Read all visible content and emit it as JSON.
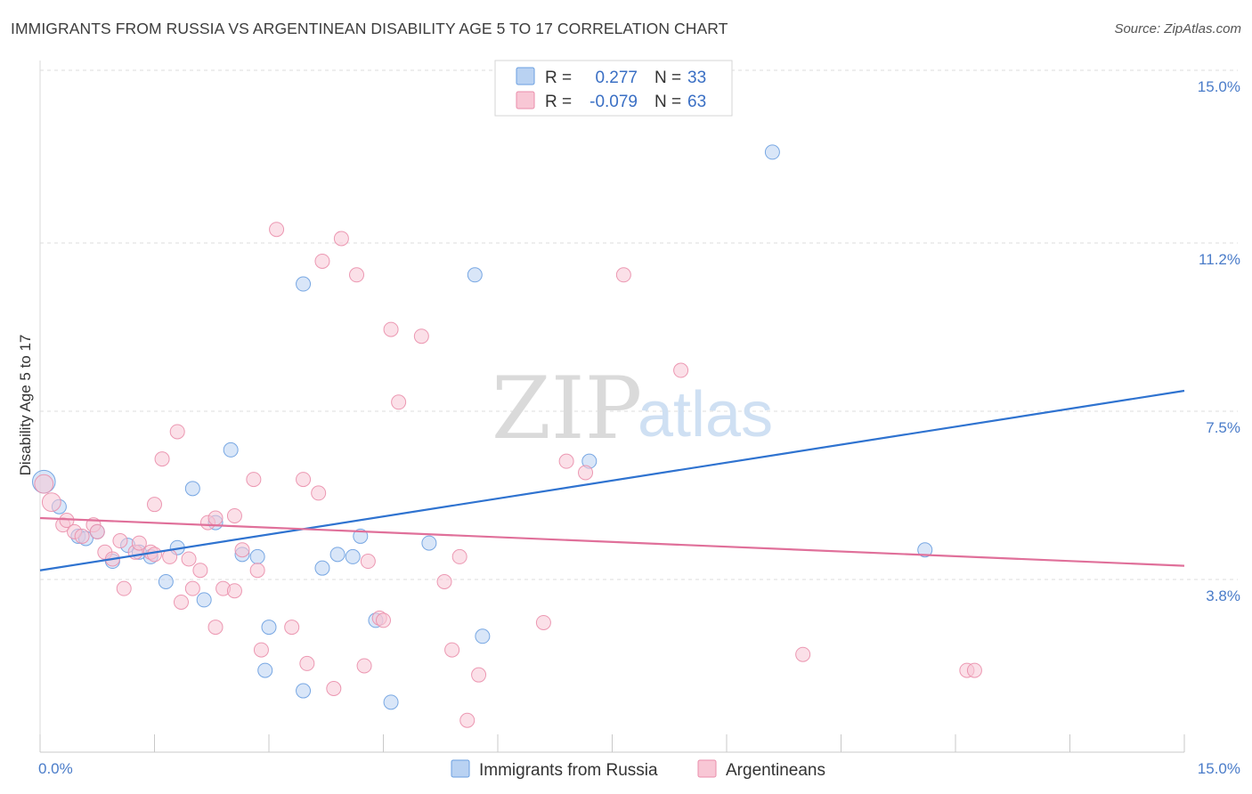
{
  "title": "IMMIGRANTS FROM RUSSIA VS ARGENTINEAN DISABILITY AGE 5 TO 17 CORRELATION CHART",
  "source": "Source: ZipAtlas.com",
  "watermark": {
    "zip": "ZIP",
    "atlas": "atlas"
  },
  "legend": {
    "r_label": "R =",
    "n_label": "N =",
    "rows": [
      {
        "r": "0.277",
        "n": "33",
        "color": "#a9c8ef"
      },
      {
        "r": "-0.079",
        "n": "63",
        "color": "#f7b8cb"
      }
    ]
  },
  "chart_data": {
    "type": "scatter",
    "title": "IMMIGRANTS FROM RUSSIA VS ARGENTINEAN DISABILITY AGE 5 TO 17 CORRELATION CHART",
    "xlabel": "",
    "ylabel": "Disability Age 5 to 17",
    "xlim": [
      0,
      15
    ],
    "ylim": [
      0,
      15
    ],
    "x_tick_labels": [
      "0.0%",
      "15.0%"
    ],
    "y_ticks": [
      3.8,
      7.5,
      11.2,
      15.0
    ],
    "y_tick_labels": [
      "3.8%",
      "7.5%",
      "11.2%",
      "15.0%"
    ],
    "grid": true,
    "legend_position": "top-center",
    "series": [
      {
        "name": "Immigrants from Russia",
        "color": "#6a9fe0",
        "fill": "#b9d2f2",
        "trend": {
          "x": [
            0,
            15
          ],
          "y": [
            4.0,
            7.95
          ]
        },
        "points": [
          [
            0.05,
            5.95,
            1.6
          ],
          [
            0.25,
            5.4,
            1
          ],
          [
            0.5,
            4.75,
            1
          ],
          [
            0.6,
            4.7,
            1
          ],
          [
            0.75,
            4.85,
            1
          ],
          [
            0.95,
            4.2,
            1
          ],
          [
            1.15,
            4.55,
            1
          ],
          [
            1.45,
            4.3,
            1
          ],
          [
            1.3,
            4.4,
            1
          ],
          [
            1.65,
            3.75,
            1
          ],
          [
            1.8,
            4.5,
            1
          ],
          [
            2.0,
            5.8,
            1
          ],
          [
            2.15,
            3.35,
            1
          ],
          [
            2.3,
            5.05,
            1
          ],
          [
            2.5,
            6.65,
            1
          ],
          [
            2.65,
            4.35,
            1
          ],
          [
            2.85,
            4.3,
            1
          ],
          [
            3.0,
            2.75,
            1
          ],
          [
            2.95,
            1.8,
            1
          ],
          [
            3.45,
            10.3,
            1
          ],
          [
            3.45,
            1.35,
            1
          ],
          [
            3.7,
            4.05,
            1
          ],
          [
            3.9,
            4.35,
            1
          ],
          [
            4.1,
            4.3,
            1
          ],
          [
            4.2,
            4.75,
            1
          ],
          [
            4.4,
            2.9,
            1
          ],
          [
            4.6,
            1.1,
            1
          ],
          [
            5.1,
            4.6,
            1
          ],
          [
            5.7,
            10.5,
            1
          ],
          [
            5.8,
            2.55,
            1
          ],
          [
            7.2,
            6.4,
            1
          ],
          [
            9.6,
            13.2,
            1
          ],
          [
            11.6,
            4.45,
            1
          ]
        ]
      },
      {
        "name": "Argentineans",
        "color": "#ea8eab",
        "fill": "#f8c7d5",
        "trend": {
          "x": [
            0,
            15
          ],
          "y": [
            5.15,
            4.1
          ]
        },
        "points": [
          [
            0.05,
            5.9,
            1.3
          ],
          [
            0.15,
            5.5,
            1.3
          ],
          [
            0.3,
            5.0,
            1
          ],
          [
            0.35,
            5.1,
            1
          ],
          [
            0.45,
            4.85,
            1
          ],
          [
            0.55,
            4.75,
            1
          ],
          [
            0.7,
            5.0,
            1
          ],
          [
            0.75,
            4.85,
            1
          ],
          [
            0.85,
            4.4,
            1
          ],
          [
            0.95,
            4.25,
            1
          ],
          [
            1.05,
            4.65,
            1
          ],
          [
            1.1,
            3.6,
            1
          ],
          [
            1.25,
            4.4,
            1
          ],
          [
            1.3,
            4.6,
            1
          ],
          [
            1.45,
            4.4,
            1
          ],
          [
            1.5,
            4.35,
            1
          ],
          [
            1.5,
            5.45,
            1
          ],
          [
            1.6,
            6.45,
            1
          ],
          [
            1.7,
            4.3,
            1
          ],
          [
            1.8,
            7.05,
            1
          ],
          [
            1.85,
            3.3,
            1
          ],
          [
            1.95,
            4.25,
            1
          ],
          [
            2.0,
            3.6,
            1
          ],
          [
            2.1,
            4.0,
            1
          ],
          [
            2.2,
            5.05,
            1
          ],
          [
            2.3,
            5.15,
            1
          ],
          [
            2.3,
            2.75,
            1
          ],
          [
            2.4,
            3.6,
            1
          ],
          [
            2.55,
            3.55,
            1
          ],
          [
            2.55,
            5.2,
            1
          ],
          [
            2.65,
            4.45,
            1
          ],
          [
            2.8,
            6.0,
            1
          ],
          [
            2.85,
            4.0,
            1
          ],
          [
            2.9,
            2.25,
            1
          ],
          [
            3.1,
            11.5,
            1
          ],
          [
            3.3,
            2.75,
            1
          ],
          [
            3.45,
            6.0,
            1
          ],
          [
            3.5,
            1.95,
            1
          ],
          [
            3.65,
            5.7,
            1
          ],
          [
            3.7,
            10.8,
            1
          ],
          [
            3.85,
            1.4,
            1
          ],
          [
            3.95,
            11.3,
            1
          ],
          [
            4.15,
            10.5,
            1
          ],
          [
            4.25,
            1.9,
            1
          ],
          [
            4.3,
            4.2,
            1
          ],
          [
            4.45,
            2.95,
            1
          ],
          [
            4.5,
            2.9,
            1
          ],
          [
            4.6,
            9.3,
            1
          ],
          [
            4.7,
            7.7,
            1
          ],
          [
            5.0,
            9.15,
            1
          ],
          [
            5.3,
            3.75,
            1
          ],
          [
            5.5,
            4.3,
            1
          ],
          [
            5.4,
            2.25,
            1
          ],
          [
            5.6,
            0.7,
            1
          ],
          [
            5.75,
            1.7,
            1
          ],
          [
            6.6,
            2.85,
            1
          ],
          [
            6.9,
            6.4,
            1
          ],
          [
            7.15,
            6.15,
            1
          ],
          [
            7.65,
            10.5,
            1
          ],
          [
            8.4,
            8.4,
            1
          ],
          [
            10.0,
            2.15,
            1
          ],
          [
            12.15,
            1.8,
            1
          ],
          [
            12.25,
            1.8,
            1
          ]
        ]
      }
    ]
  }
}
